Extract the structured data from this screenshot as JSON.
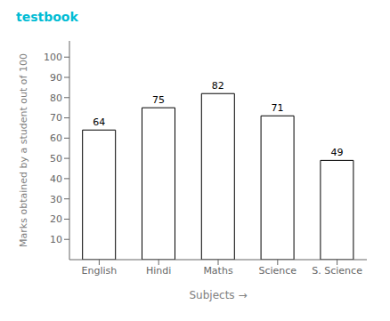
{
  "chart_data": {
    "type": "bar",
    "categories": [
      "English",
      "Hindi",
      "Maths",
      "Science",
      "S. Science"
    ],
    "values": [
      64,
      75,
      82,
      71,
      49
    ],
    "color": "#ffffff",
    "xlabel": "Subjects →",
    "ylabel": "Marks obtained by a student out of 100",
    "ylim": [
      0,
      108
    ],
    "yticks": [
      10,
      20,
      30,
      40,
      50,
      60,
      70,
      80,
      90,
      100
    ],
    "grid": false,
    "data_labels": true,
    "annotations": [
      {
        "text": "testbook",
        "color": "#00bcd4"
      }
    ]
  }
}
